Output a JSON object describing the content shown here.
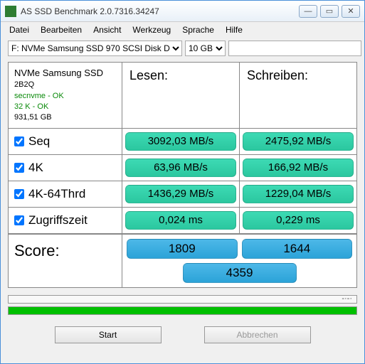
{
  "window": {
    "title": "AS SSD Benchmark 2.0.7316.34247"
  },
  "menu": {
    "datei": "Datei",
    "bearbeiten": "Bearbeiten",
    "ansicht": "Ansicht",
    "werkzeug": "Werkzeug",
    "sprache": "Sprache",
    "hilfe": "Hilfe"
  },
  "toolbar": {
    "drive": "F: NVMe Samsung SSD 970 SCSI Disk D",
    "size": "10 GB"
  },
  "info": {
    "name": "NVMe Samsung SSD",
    "fw": "2B2Q",
    "drv": "secnvme - OK",
    "align": "32 K - OK",
    "cap": "931,51 GB"
  },
  "headers": {
    "read": "Lesen:",
    "write": "Schreiben:"
  },
  "rows": {
    "seq": {
      "label": "Seq",
      "read": "3092,03 MB/s",
      "write": "2475,92 MB/s"
    },
    "fourk": {
      "label": "4K",
      "read": "63,96 MB/s",
      "write": "166,92 MB/s"
    },
    "fourk64": {
      "label": "4K-64Thrd",
      "read": "1436,29 MB/s",
      "write": "1229,04 MB/s"
    },
    "acc": {
      "label": "Zugriffszeit",
      "read": "0,024 ms",
      "write": "0,229 ms"
    }
  },
  "score": {
    "label": "Score:",
    "read": "1809",
    "write": "1644",
    "total": "4359"
  },
  "buttons": {
    "start": "Start",
    "cancel": "Abbrechen"
  },
  "colors": {
    "green": "#2bc79f",
    "blue": "#2ba3d8",
    "progress": "#00c000"
  }
}
